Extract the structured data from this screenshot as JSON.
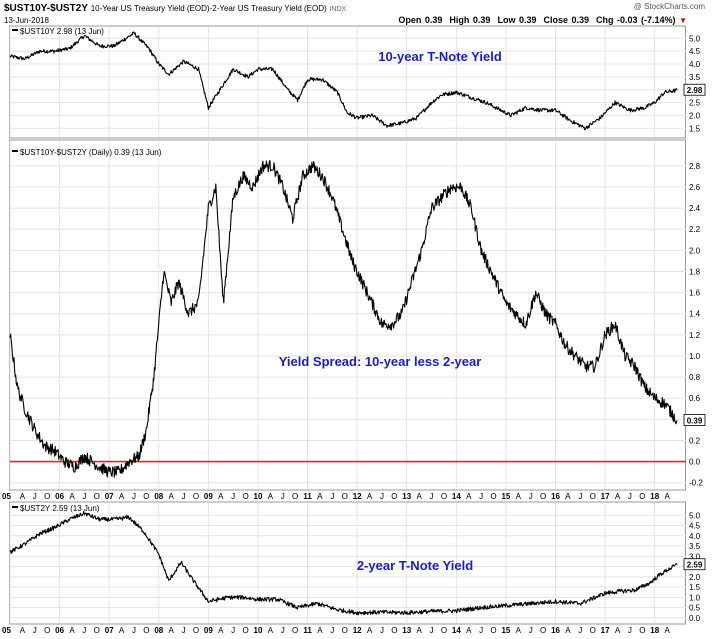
{
  "header": {
    "symbol": "$UST10Y-$UST2Y",
    "description": "10-Year US Treasury Yield (EOD)-2-Year US Treasury Yield (EOD)",
    "exchange": "INDX",
    "date": "13-Jun-2018",
    "open": "Open 0.39",
    "high": "High 0.39",
    "low": "Low 0.39",
    "close": "Close 0.39",
    "change": "Chg -0.03 (-7.14%)",
    "change_arrow": "▼",
    "watermark": "@ StockCharts.com"
  },
  "colors": {
    "price_line": "#000000",
    "annotation": "#1a1ad6",
    "zero_line": "#e8232a",
    "grid": "#e3e3e3",
    "border": "#9a9a9a",
    "change_down": "#cc0000"
  },
  "chart_data": [
    {
      "type": "line",
      "panel": "top",
      "legend": "$UST10Y 2.98 (13 Jun)",
      "annotation": "10-year T-Note Yield",
      "last_value_label": "2.98",
      "ylim": [
        1.2,
        5.4
      ],
      "yticks": [
        1.5,
        2.0,
        2.5,
        3.0,
        3.5,
        4.0,
        4.5,
        5.0
      ],
      "ytick_labels": [
        "1.5",
        "2.0",
        "2.5",
        "3.0",
        "3.5",
        "4.0",
        "4.5",
        "5.0"
      ],
      "x": [
        2005.0,
        2005.3,
        2005.6,
        2005.9,
        2006.2,
        2006.5,
        2006.8,
        2007.1,
        2007.5,
        2007.8,
        2008.0,
        2008.2,
        2008.5,
        2008.8,
        2009.0,
        2009.3,
        2009.5,
        2009.8,
        2010.0,
        2010.3,
        2010.6,
        2010.8,
        2011.0,
        2011.3,
        2011.6,
        2011.8,
        2012.0,
        2012.3,
        2012.6,
        2012.9,
        2013.2,
        2013.5,
        2013.7,
        2014.0,
        2014.3,
        2014.6,
        2014.9,
        2015.1,
        2015.4,
        2015.7,
        2016.0,
        2016.3,
        2016.6,
        2016.9,
        2017.2,
        2017.5,
        2017.8,
        2018.0,
        2018.2,
        2018.45
      ],
      "values": [
        4.3,
        4.2,
        4.5,
        4.5,
        4.6,
        5.1,
        4.7,
        4.7,
        5.2,
        4.6,
        4.0,
        3.6,
        4.1,
        3.8,
        2.3,
        3.2,
        3.8,
        3.5,
        3.8,
        3.8,
        3.0,
        2.6,
        3.4,
        3.4,
        2.9,
        2.1,
        1.9,
        2.0,
        1.6,
        1.7,
        1.9,
        2.5,
        2.8,
        2.9,
        2.7,
        2.5,
        2.2,
        2.0,
        2.3,
        2.2,
        2.2,
        1.8,
        1.5,
        1.9,
        2.5,
        2.2,
        2.3,
        2.5,
        2.9,
        2.98
      ]
    },
    {
      "type": "line",
      "panel": "middle",
      "legend": "$UST10Y-$UST2Y (Daily) 0.39 (13 Jun)",
      "annotation": "Yield Spread: 10-year less 2-year",
      "last_value_label": "0.39",
      "reference_line": 0.0,
      "ylim": [
        -0.25,
        2.95
      ],
      "yticks": [
        -0.2,
        0.0,
        0.2,
        0.4,
        0.6,
        0.8,
        1.0,
        1.2,
        1.4,
        1.6,
        1.8,
        2.0,
        2.2,
        2.4,
        2.6,
        2.8
      ],
      "ytick_labels": [
        "-0.2",
        "0.0",
        "0.2",
        "0.4",
        "0.6",
        "0.8",
        "1.0",
        "1.2",
        "1.4",
        "1.6",
        "1.8",
        "2.0",
        "2.2",
        "2.4",
        "2.6",
        "2.8"
      ],
      "x": [
        2005.0,
        2005.15,
        2005.3,
        2005.5,
        2005.7,
        2005.9,
        2006.1,
        2006.3,
        2006.5,
        2006.8,
        2007.0,
        2007.2,
        2007.4,
        2007.6,
        2007.75,
        2007.9,
        2008.1,
        2008.25,
        2008.4,
        2008.6,
        2008.8,
        2009.0,
        2009.15,
        2009.3,
        2009.5,
        2009.7,
        2009.9,
        2010.1,
        2010.3,
        2010.5,
        2010.7,
        2010.9,
        2011.1,
        2011.3,
        2011.5,
        2011.7,
        2011.9,
        2012.1,
        2012.3,
        2012.5,
        2012.7,
        2012.9,
        2013.1,
        2013.3,
        2013.5,
        2013.7,
        2013.9,
        2014.1,
        2014.3,
        2014.5,
        2014.7,
        2014.9,
        2015.0,
        2015.2,
        2015.4,
        2015.6,
        2015.8,
        2016.0,
        2016.2,
        2016.4,
        2016.6,
        2016.8,
        2017.0,
        2017.2,
        2017.4,
        2017.6,
        2017.8,
        2018.0,
        2018.2,
        2018.45
      ],
      "values": [
        1.2,
        0.7,
        0.5,
        0.3,
        0.15,
        0.1,
        0.0,
        -0.05,
        0.05,
        -0.05,
        -0.1,
        -0.1,
        0.0,
        0.05,
        0.3,
        0.8,
        1.8,
        1.5,
        1.7,
        1.4,
        1.5,
        2.4,
        2.6,
        1.5,
        2.5,
        2.7,
        2.6,
        2.8,
        2.8,
        2.6,
        2.3,
        2.7,
        2.8,
        2.7,
        2.5,
        2.2,
        1.9,
        1.7,
        1.5,
        1.3,
        1.3,
        1.4,
        1.7,
        2.0,
        2.4,
        2.5,
        2.6,
        2.6,
        2.4,
        2.0,
        1.8,
        1.6,
        1.5,
        1.4,
        1.3,
        1.6,
        1.4,
        1.3,
        1.1,
        1.0,
        0.9,
        0.9,
        1.2,
        1.3,
        1.0,
        0.9,
        0.7,
        0.6,
        0.55,
        0.39
      ]
    },
    {
      "type": "line",
      "panel": "bottom",
      "legend": "$UST2Y 2.59 (13 Jun)",
      "annotation": "2-year T-Note Yield",
      "last_value_label": "2.59",
      "ylim": [
        -0.2,
        5.5
      ],
      "yticks": [
        0.0,
        0.5,
        1.0,
        1.5,
        2.0,
        2.5,
        3.0,
        3.5,
        4.0,
        4.5,
        5.0
      ],
      "ytick_labels": [
        "0.0",
        "0.5",
        "1.0",
        "1.5",
        "2.0",
        "2.5",
        "3.0",
        "3.5",
        "4.0",
        "4.5",
        "5.0"
      ],
      "x": [
        2005.0,
        2005.3,
        2005.6,
        2005.9,
        2006.2,
        2006.5,
        2006.8,
        2007.1,
        2007.4,
        2007.7,
        2008.0,
        2008.2,
        2008.45,
        2008.7,
        2009.0,
        2009.4,
        2009.7,
        2010.0,
        2010.4,
        2010.8,
        2011.2,
        2011.6,
        2012.0,
        2012.5,
        2013.0,
        2013.5,
        2014.0,
        2014.5,
        2015.0,
        2015.5,
        2016.0,
        2016.5,
        2017.0,
        2017.3,
        2017.6,
        2017.9,
        2018.1,
        2018.3,
        2018.45
      ],
      "values": [
        3.2,
        3.6,
        4.1,
        4.4,
        4.8,
        5.1,
        4.8,
        4.8,
        4.9,
        4.2,
        3.1,
        1.8,
        2.7,
        1.8,
        0.8,
        1.0,
        1.0,
        0.9,
        0.9,
        0.5,
        0.7,
        0.4,
        0.25,
        0.28,
        0.25,
        0.32,
        0.35,
        0.5,
        0.6,
        0.7,
        0.8,
        0.7,
        1.2,
        1.3,
        1.35,
        1.7,
        2.1,
        2.4,
        2.59
      ]
    }
  ],
  "x_axis": {
    "labels": [
      "05",
      "A",
      "J",
      "O",
      "06",
      "A",
      "J",
      "O",
      "07",
      "A",
      "J",
      "O",
      "08",
      "A",
      "J",
      "O",
      "09",
      "A",
      "J",
      "O",
      "10",
      "A",
      "J",
      "O",
      "11",
      "A",
      "J",
      "O",
      "12",
      "A",
      "J",
      "O",
      "13",
      "A",
      "J",
      "O",
      "14",
      "A",
      "J",
      "O",
      "15",
      "A",
      "J",
      "O",
      "16",
      "A",
      "J",
      "O",
      "17",
      "A",
      "J",
      "O",
      "18",
      "A"
    ],
    "year_labels": [
      "05",
      "06",
      "07",
      "08",
      "09",
      "10",
      "11",
      "12",
      "13",
      "14",
      "15",
      "16",
      "17",
      "18"
    ]
  }
}
